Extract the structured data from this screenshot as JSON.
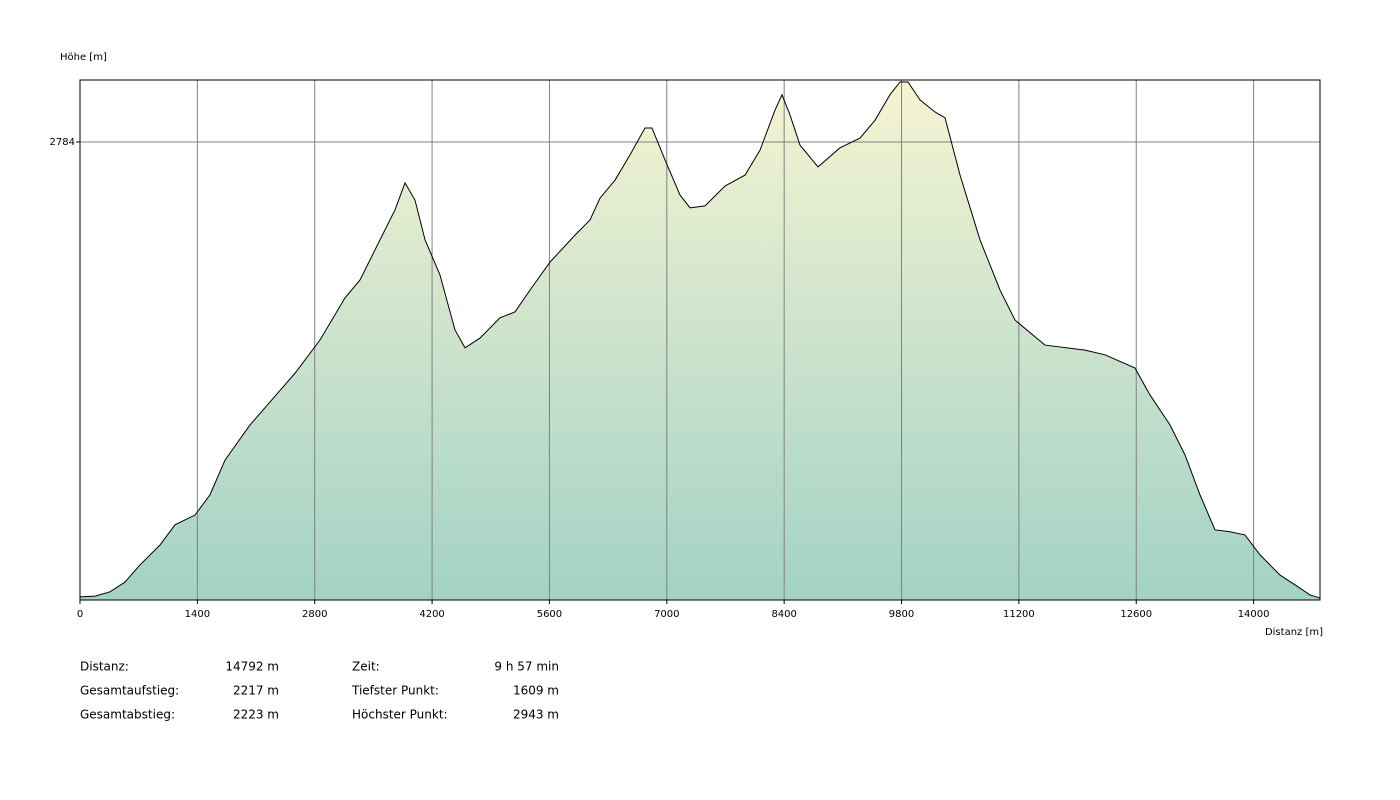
{
  "chart_data": {
    "type": "area",
    "y_label": "Höhe [m]",
    "x_label": "Distanz [m]",
    "x": [
      0,
      179,
      358,
      537,
      716,
      954,
      1133,
      1372,
      1551,
      1730,
      2028,
      2267,
      2565,
      2863,
      3161,
      3340,
      3579,
      3758,
      3877,
      3996,
      4116,
      4294,
      4473,
      4593,
      4772,
      5010,
      5189,
      5368,
      5607,
      5905,
      6084,
      6203,
      6382,
      6561,
      6740,
      6823,
      6979,
      7157,
      7277,
      7456,
      7694,
      7933,
      8112,
      8291,
      8374,
      8470,
      8589,
      8804,
      9066,
      9305,
      9484,
      9662,
      9782,
      9877,
      10020,
      10199,
      10319,
      10498,
      10736,
      10975,
      11154,
      11511,
      11989,
      12227,
      12585,
      12764,
      13003,
      13182,
      13360,
      13539,
      13718,
      13897,
      14076,
      14315,
      14494,
      14673,
      14792
    ],
    "values": [
      1617,
      1619,
      1630,
      1655,
      1699,
      1750,
      1802,
      1827,
      1879,
      1968,
      2058,
      2117,
      2191,
      2276,
      2384,
      2430,
      2533,
      2610,
      2679,
      2635,
      2533,
      2443,
      2302,
      2256,
      2281,
      2333,
      2348,
      2404,
      2476,
      2545,
      2584,
      2640,
      2686,
      2751,
      2820,
      2820,
      2738,
      2648,
      2615,
      2620,
      2671,
      2699,
      2763,
      2866,
      2905,
      2853,
      2776,
      2720,
      2769,
      2794,
      2840,
      2905,
      2938,
      2938,
      2892,
      2861,
      2846,
      2699,
      2533,
      2404,
      2327,
      2263,
      2250,
      2238,
      2204,
      2135,
      2058,
      1981,
      1879,
      1789,
      1784,
      1776,
      1725,
      1673,
      1648,
      1622,
      1614
    ],
    "color": "#000000",
    "fill_top": "#f6f4d2",
    "fill_bottom": "#a2d2c6",
    "xlim": [
      0,
      14792
    ],
    "ylim": [
      1609,
      2943
    ],
    "xticks": [
      0,
      1400,
      2800,
      4200,
      5600,
      7000,
      8400,
      9800,
      11200,
      12600,
      14000
    ],
    "yticks": [
      2784
    ],
    "grid": true
  },
  "stats": [
    {
      "label": "Distanz:",
      "value": "14792 m"
    },
    {
      "label": "Gesamtaufstieg:",
      "value": "2217 m"
    },
    {
      "label": "Gesamtabstieg:",
      "value": "2223 m"
    },
    {
      "label": "Zeit:",
      "value": "9 h 57 min"
    },
    {
      "label": "Tiefster Punkt:",
      "value": "1609 m"
    },
    {
      "label": "Höchster Punkt:",
      "value": "2943 m"
    }
  ]
}
